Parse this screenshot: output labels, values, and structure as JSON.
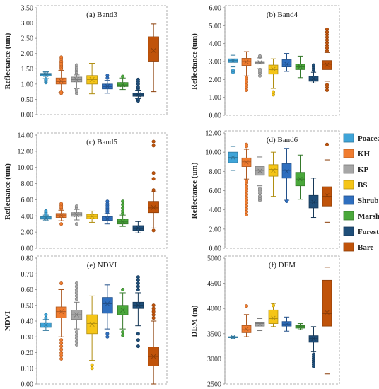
{
  "categories": [
    "Poaceae",
    "KH",
    "KP",
    "BS",
    "Shrub",
    "Marsh",
    "Forest",
    "Bare"
  ],
  "colors": [
    "#3fa4d8",
    "#f07c2f",
    "#a6a6a6",
    "#f5c518",
    "#2f6fbf",
    "#4aa83b",
    "#1f4e79",
    "#c0530a"
  ],
  "chart_data": [
    {
      "type": "box",
      "title": "(a) Band3",
      "ylabel": "Reflectance (um)",
      "ylim": [
        0,
        3.5
      ],
      "yticks": [
        "0.00",
        "0.50",
        "1.00",
        "1.50",
        "2.00",
        "2.50",
        "3.00",
        "3.50"
      ],
      "boxes": [
        {
          "min": 1.18,
          "q1": 1.27,
          "median": 1.31,
          "q3": 1.35,
          "max": 1.4,
          "mean": 1.31,
          "outliers": [
            1.05,
            1.1,
            1.13,
            1.16
          ]
        },
        {
          "min": 0.72,
          "q1": 1.0,
          "median": 1.08,
          "q3": 1.2,
          "max": 1.45,
          "mean": 1.1,
          "outliers": [
            0.7,
            0.75,
            1.5,
            1.55,
            1.6,
            1.65,
            1.7,
            1.75,
            1.82,
            1.88
          ]
        },
        {
          "min": 0.85,
          "q1": 1.07,
          "median": 1.15,
          "q3": 1.23,
          "max": 1.3,
          "mean": 1.15,
          "outliers": [
            0.7,
            0.78,
            0.82,
            1.35,
            1.4,
            1.45,
            1.5,
            1.55,
            1.62
          ]
        },
        {
          "min": 0.68,
          "q1": 1.0,
          "median": 1.15,
          "q3": 1.28,
          "max": 1.68,
          "mean": 1.15,
          "outliers": []
        },
        {
          "min": 0.7,
          "q1": 0.84,
          "median": 0.92,
          "q3": 1.0,
          "max": 1.12,
          "mean": 0.93,
          "outliers": [
            1.2,
            1.28
          ]
        },
        {
          "min": 0.82,
          "q1": 0.92,
          "median": 0.97,
          "q3": 1.05,
          "max": 1.2,
          "mean": 0.98,
          "outliers": [
            1.25
          ]
        },
        {
          "min": 0.52,
          "q1": 0.6,
          "median": 0.65,
          "q3": 0.7,
          "max": 0.8,
          "mean": 0.65,
          "outliers": [
            0.45,
            0.5,
            0.85,
            0.9,
            1.0,
            1.08,
            1.15
          ]
        },
        {
          "min": 0.75,
          "q1": 1.75,
          "median": 2.05,
          "q3": 2.55,
          "max": 2.97,
          "mean": 2.1,
          "outliers": []
        }
      ]
    },
    {
      "type": "box",
      "title": "(b) Band4",
      "ylabel": "Reflectance (um)",
      "ylim": [
        0,
        6
      ],
      "yticks": [
        "0.00",
        "1.00",
        "2.00",
        "3.00",
        "4.00",
        "5.00",
        "6.00"
      ],
      "boxes": [
        {
          "min": 2.7,
          "q1": 2.95,
          "median": 3.05,
          "q3": 3.15,
          "max": 3.35,
          "mean": 3.05,
          "outliers": [
            2.4,
            2.5
          ]
        },
        {
          "min": 2.2,
          "q1": 2.78,
          "median": 3.0,
          "q3": 3.18,
          "max": 3.55,
          "mean": 2.98,
          "outliers": [
            1.4,
            1.55,
            1.7,
            1.85,
            2.0,
            2.1
          ]
        },
        {
          "min": 2.6,
          "q1": 2.88,
          "median": 2.95,
          "q3": 3.0,
          "max": 3.2,
          "mean": 2.95,
          "outliers": [
            2.2,
            2.35,
            2.45,
            2.55,
            3.25,
            3.3
          ]
        },
        {
          "min": 1.5,
          "q1": 2.3,
          "median": 2.55,
          "q3": 2.8,
          "max": 3.15,
          "mean": 2.58,
          "outliers": [
            1.15,
            1.3
          ]
        },
        {
          "min": 2.45,
          "q1": 2.7,
          "median": 2.85,
          "q3": 3.1,
          "max": 3.45,
          "mean": 2.85,
          "outliers": []
        },
        {
          "min": 2.1,
          "q1": 2.55,
          "median": 2.7,
          "q3": 2.85,
          "max": 3.3,
          "mean": 2.72,
          "outliers": []
        },
        {
          "min": 1.8,
          "q1": 1.9,
          "median": 2.02,
          "q3": 2.18,
          "max": 2.4,
          "mean": 2.05,
          "outliers": [
            2.5,
            2.6,
            2.7,
            2.8
          ]
        },
        {
          "min": 1.9,
          "q1": 2.55,
          "median": 2.85,
          "q3": 3.05,
          "max": 3.5,
          "mean": 2.82,
          "outliers": [
            1.4,
            1.55,
            1.7,
            3.6,
            3.75,
            3.9,
            4.05,
            4.2,
            4.35,
            4.5,
            4.65,
            4.8
          ]
        }
      ]
    },
    {
      "type": "box",
      "title": "(c) Band5",
      "ylabel": "Reflectance (um)",
      "ylim": [
        0,
        14
      ],
      "yticks": [
        "0.00",
        "2.00",
        "4.00",
        "6.00",
        "8.00",
        "10.00",
        "12.00",
        "14.00"
      ],
      "boxes": [
        {
          "min": 3.4,
          "q1": 3.6,
          "median": 3.75,
          "q3": 3.9,
          "max": 4.1,
          "mean": 3.75,
          "outliers": [
            4.2,
            4.4,
            4.6
          ]
        },
        {
          "min": 3.4,
          "q1": 3.8,
          "median": 4.1,
          "q3": 4.3,
          "max": 4.7,
          "mean": 4.05,
          "outliers": [
            3.0,
            4.9,
            5.1,
            5.3,
            5.5
          ]
        },
        {
          "min": 3.5,
          "q1": 3.95,
          "median": 4.2,
          "q3": 4.4,
          "max": 4.8,
          "mean": 4.15,
          "outliers": [
            3.0,
            5.0,
            5.2
          ]
        },
        {
          "min": 3.2,
          "q1": 3.65,
          "median": 3.95,
          "q3": 4.2,
          "max": 4.6,
          "mean": 3.95,
          "outliers": []
        },
        {
          "min": 3.0,
          "q1": 3.45,
          "median": 3.65,
          "q3": 3.9,
          "max": 4.3,
          "mean": 3.65,
          "outliers": [
            4.5,
            4.7,
            4.9,
            5.1,
            5.3,
            5.5,
            5.8
          ]
        },
        {
          "min": 2.7,
          "q1": 3.0,
          "median": 3.25,
          "q3": 3.6,
          "max": 4.1,
          "mean": 3.3,
          "outliers": [
            4.3,
            4.6,
            5.0,
            5.4,
            5.8
          ]
        },
        {
          "min": 1.9,
          "q1": 2.2,
          "median": 2.45,
          "q3": 2.8,
          "max": 3.3,
          "mean": 2.5,
          "outliers": []
        },
        {
          "min": 2.5,
          "q1": 4.4,
          "median": 5.0,
          "q3": 5.8,
          "max": 7.0,
          "mean": 5.05,
          "outliers": [
            2.2,
            7.2,
            8.6,
            9.3,
            12.7,
            13.2
          ]
        }
      ]
    },
    {
      "type": "box",
      "title": "(d) Band6",
      "ylabel": "Reflectance (um)",
      "ylim": [
        0,
        12
      ],
      "yticks": [
        "0.00",
        "2.00",
        "4.00",
        "6.00",
        "8.00",
        "10.00",
        "12.00"
      ],
      "boxes": [
        {
          "min": 8.1,
          "q1": 8.9,
          "median": 9.45,
          "q3": 10.0,
          "max": 10.6,
          "mean": 9.45,
          "outliers": []
        },
        {
          "min": 7.2,
          "q1": 8.5,
          "median": 9.0,
          "q3": 9.4,
          "max": 10.3,
          "mean": 8.95,
          "outliers": [
            3.5,
            3.8,
            4.1,
            4.4,
            4.7,
            5.0,
            5.3,
            5.6,
            5.9,
            6.2,
            6.5,
            6.8,
            7.0,
            10.6,
            10.8
          ]
        },
        {
          "min": 6.5,
          "q1": 7.6,
          "median": 8.1,
          "q3": 8.5,
          "max": 9.5,
          "mean": 8.05,
          "outliers": [
            5.0,
            5.2,
            5.4,
            5.7,
            6.0,
            6.2
          ]
        },
        {
          "min": 5.4,
          "q1": 7.5,
          "median": 8.2,
          "q3": 8.7,
          "max": 10.0,
          "mean": 8.1,
          "outliers": []
        },
        {
          "min": 5.0,
          "q1": 7.3,
          "median": 8.1,
          "q3": 8.8,
          "max": 10.4,
          "mean": 8.0,
          "outliers": [
            4.9
          ]
        },
        {
          "min": 5.1,
          "q1": 6.5,
          "median": 7.2,
          "q3": 7.9,
          "max": 9.7,
          "mean": 7.2,
          "outliers": []
        },
        {
          "min": 3.2,
          "q1": 4.2,
          "median": 4.8,
          "q3": 5.5,
          "max": 7.3,
          "mean": 4.8,
          "outliers": []
        },
        {
          "min": 2.7,
          "q1": 4.4,
          "median": 5.4,
          "q3": 6.4,
          "max": 9.2,
          "mean": 5.5,
          "outliers": [
            10.8
          ]
        }
      ]
    },
    {
      "type": "box",
      "title": "(e) NDVI",
      "ylabel": "NDVI",
      "ylim": [
        0,
        0.8
      ],
      "yticks": [
        "0.00",
        "0.10",
        "0.20",
        "0.30",
        "0.40",
        "0.50",
        "0.60",
        "0.70",
        "0.80"
      ],
      "boxes": [
        {
          "min": 0.34,
          "q1": 0.36,
          "median": 0.375,
          "q3": 0.39,
          "max": 0.41,
          "mean": 0.375,
          "outliers": [
            0.42,
            0.44
          ]
        },
        {
          "min": 0.3,
          "q1": 0.42,
          "median": 0.46,
          "q3": 0.49,
          "max": 0.6,
          "mean": 0.46,
          "outliers": [
            0.16,
            0.18,
            0.2,
            0.22,
            0.24,
            0.26,
            0.28,
            0.64
          ]
        },
        {
          "min": 0.35,
          "q1": 0.41,
          "median": 0.44,
          "q3": 0.47,
          "max": 0.52,
          "mean": 0.44,
          "outliers": [
            0.25,
            0.27,
            0.29,
            0.31,
            0.33,
            0.54,
            0.56,
            0.58,
            0.6,
            0.62,
            0.64
          ]
        },
        {
          "min": 0.15,
          "q1": 0.32,
          "median": 0.385,
          "q3": 0.44,
          "max": 0.56,
          "mean": 0.38,
          "outliers": [
            0.1,
            0.12
          ]
        },
        {
          "min": 0.35,
          "q1": 0.45,
          "median": 0.51,
          "q3": 0.55,
          "max": 0.63,
          "mean": 0.51,
          "outliers": [
            0.3,
            0.32
          ]
        },
        {
          "min": 0.35,
          "q1": 0.44,
          "median": 0.47,
          "q3": 0.5,
          "max": 0.58,
          "mean": 0.47,
          "outliers": [
            0.31,
            0.33,
            0.6
          ]
        },
        {
          "min": 0.37,
          "q1": 0.48,
          "median": 0.5,
          "q3": 0.52,
          "max": 0.58,
          "mean": 0.5,
          "outliers": [
            0.24,
            0.28,
            0.32,
            0.6,
            0.62,
            0.64,
            0.66,
            0.68
          ]
        },
        {
          "min": 0.0,
          "q1": 0.115,
          "median": 0.175,
          "q3": 0.235,
          "max": 0.4,
          "mean": 0.175,
          "outliers": [
            0.42,
            0.44,
            0.46,
            0.48,
            0.5
          ]
        }
      ]
    },
    {
      "type": "box",
      "title": "(f) DEM",
      "ylabel": "DEM (m)",
      "ylim": [
        2500,
        5000
      ],
      "yticks": [
        "2500",
        "3000",
        "3500",
        "4000",
        "4500",
        "5000"
      ],
      "boxes": [
        {
          "min": 3410,
          "q1": 3420,
          "median": 3430,
          "q3": 3440,
          "max": 3450,
          "mean": 3430,
          "outliers": []
        },
        {
          "min": 3440,
          "q1": 3520,
          "median": 3580,
          "q3": 3660,
          "max": 3880,
          "mean": 3590,
          "outliers": [
            4050
          ]
        },
        {
          "min": 3560,
          "q1": 3650,
          "median": 3700,
          "q3": 3730,
          "max": 3800,
          "mean": 3690,
          "outliers": []
        },
        {
          "min": 3640,
          "q1": 3700,
          "median": 3800,
          "q3": 3970,
          "max": 4100,
          "mean": 3810,
          "outliers": [
            4060
          ]
        },
        {
          "min": 3550,
          "q1": 3650,
          "median": 3690,
          "q3": 3740,
          "max": 3830,
          "mean": 3690,
          "outliers": []
        },
        {
          "min": 3580,
          "q1": 3610,
          "median": 3640,
          "q3": 3660,
          "max": 3700,
          "mean": 3640,
          "outliers": []
        },
        {
          "min": 3150,
          "q1": 3330,
          "median": 3400,
          "q3": 3460,
          "max": 3640,
          "mean": 3400,
          "outliers": [
            2850,
            2890,
            2930,
            2970,
            3010,
            3050,
            3090
          ]
        },
        {
          "min": 2700,
          "q1": 3650,
          "median": 3900,
          "q3": 4560,
          "max": 4820,
          "mean": 3920,
          "outliers": []
        }
      ]
    }
  ]
}
